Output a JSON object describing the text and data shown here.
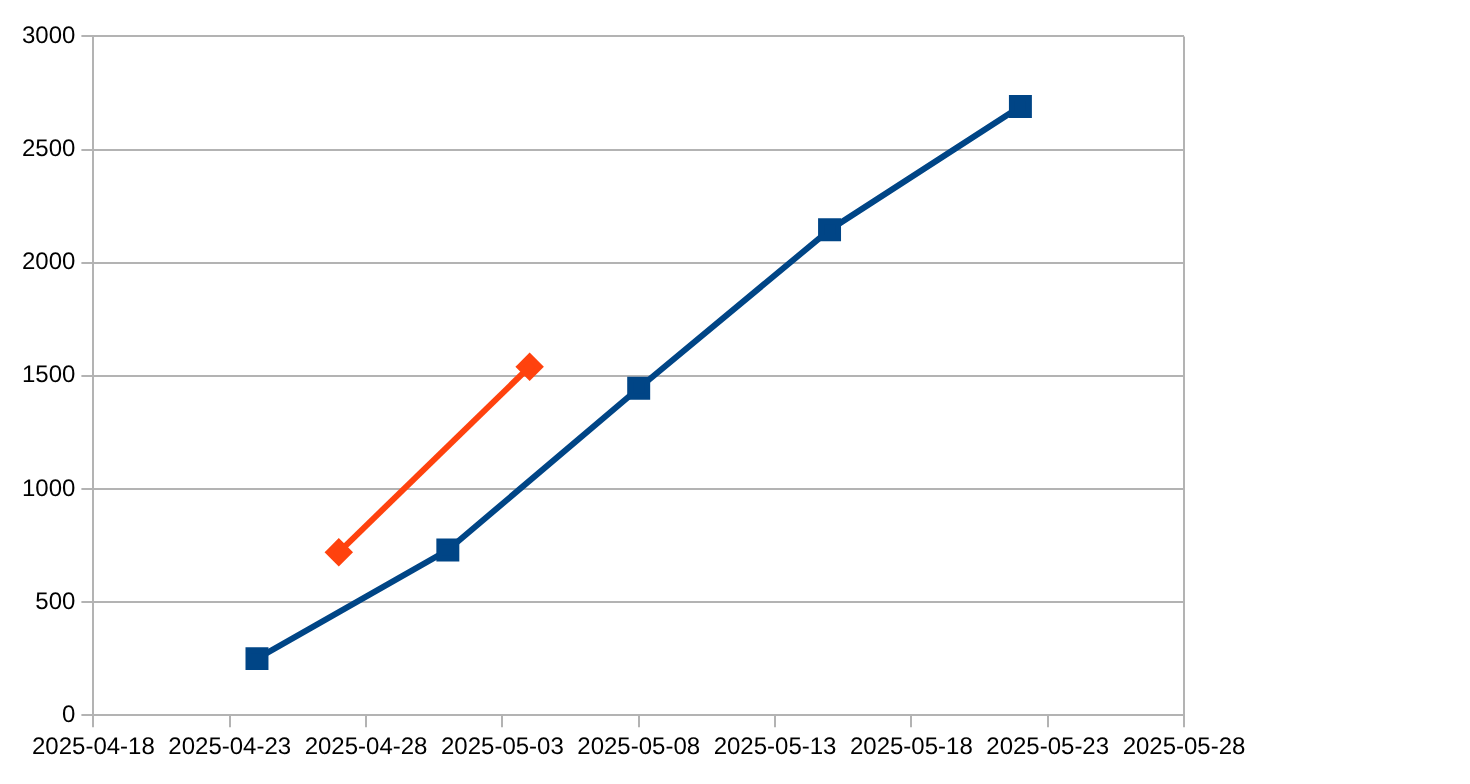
{
  "chart_data": {
    "type": "line",
    "x": [
      "2025-04-24",
      "2025-05-01",
      "2025-05-08",
      "2025-05-15",
      "2025-05-22"
    ],
    "series": [
      {
        "color": "#004586",
        "marker": "square",
        "values": [
          250,
          730,
          1445,
          2145,
          2690
        ]
      },
      {
        "color": "#ff420e",
        "marker": "diamond",
        "x": [
          "2025-04-27",
          "2025-05-04"
        ],
        "values": [
          720,
          1540
        ]
      }
    ],
    "xlim": [
      "2025-04-18",
      "2025-05-28"
    ],
    "xticks": [
      "2025-04-18",
      "2025-04-23",
      "2025-04-28",
      "2025-05-03",
      "2025-05-08",
      "2025-05-13",
      "2025-05-18",
      "2025-05-23",
      "2025-05-28"
    ],
    "ylim": [
      0,
      3000
    ],
    "yticks": [
      0,
      500,
      1000,
      1500,
      2000,
      2500,
      3000
    ],
    "grid": "y",
    "legend": false
  }
}
